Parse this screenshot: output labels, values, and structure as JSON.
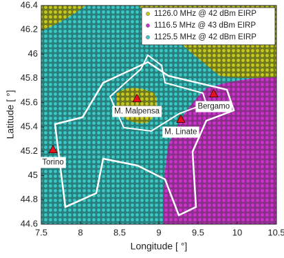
{
  "chart_data": {
    "type": "scatter",
    "xlabel": "Longitude [ °]",
    "ylabel": "Latitude [ °]",
    "xlim": [
      7.5,
      10.5
    ],
    "xticks": [
      7.5,
      8,
      8.5,
      9,
      9.5,
      10,
      10.5
    ],
    "ylim": [
      44.6,
      46.4
    ],
    "yticks": [
      44.6,
      44.8,
      45,
      45.2,
      45.4,
      45.6,
      45.8,
      46,
      46.2,
      46.4
    ],
    "legend": "upper right",
    "series": [
      {
        "name": "1126.0 MHz @ 42 dBm EIRP",
        "color": "#c8c81e"
      },
      {
        "name": "1116.5 MHz @ 43 dBm EIRP",
        "color": "#cc33cc"
      },
      {
        "name": "1125.5 MHz @ 42 dBm EIRP",
        "color": "#3cc8c8"
      }
    ],
    "airports": [
      {
        "label": "Torino",
        "x": 7.65,
        "y": 45.21
      },
      {
        "label": "M. Malpensa",
        "x": 8.72,
        "y": 45.63
      },
      {
        "label": "M. Linate",
        "x": 9.28,
        "y": 45.46
      },
      {
        "label": "Bergamo",
        "x": 9.7,
        "y": 45.67
      }
    ]
  }
}
